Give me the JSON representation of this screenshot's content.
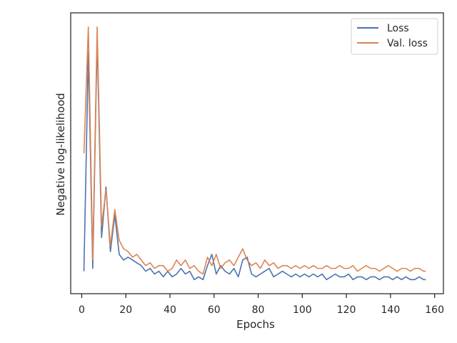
{
  "chart_data": {
    "type": "line",
    "xlabel": "Epochs",
    "ylabel": "Negative log-likelihood",
    "xlim": [
      -5,
      164
    ],
    "ylim": [
      0,
      1
    ],
    "xticks": [
      0,
      20,
      40,
      60,
      80,
      100,
      120,
      140,
      160
    ],
    "yticks_labeled": false,
    "legend_position": "top-right",
    "series": [
      {
        "name": "Loss",
        "color": "#4c72b0",
        "x": [
          1,
          3,
          5,
          7,
          9,
          11,
          13,
          15,
          17,
          19,
          21,
          23,
          25,
          27,
          29,
          31,
          33,
          35,
          37,
          39,
          41,
          43,
          45,
          47,
          49,
          51,
          53,
          55,
          57,
          59,
          61,
          63,
          65,
          67,
          69,
          71,
          73,
          75,
          77,
          79,
          81,
          83,
          85,
          87,
          89,
          91,
          93,
          95,
          97,
          99,
          101,
          103,
          105,
          107,
          109,
          111,
          113,
          115,
          117,
          119,
          121,
          123,
          125,
          127,
          129,
          131,
          133,
          135,
          137,
          139,
          141,
          143,
          145,
          147,
          149,
          151,
          153,
          155,
          156
        ],
        "y": [
          0.08,
          0.86,
          0.09,
          0.91,
          0.2,
          0.38,
          0.15,
          0.28,
          0.14,
          0.12,
          0.13,
          0.12,
          0.11,
          0.1,
          0.08,
          0.09,
          0.07,
          0.08,
          0.06,
          0.08,
          0.06,
          0.07,
          0.09,
          0.07,
          0.08,
          0.05,
          0.06,
          0.05,
          0.1,
          0.14,
          0.07,
          0.1,
          0.08,
          0.07,
          0.09,
          0.06,
          0.12,
          0.13,
          0.07,
          0.06,
          0.07,
          0.08,
          0.09,
          0.06,
          0.07,
          0.08,
          0.07,
          0.06,
          0.07,
          0.06,
          0.07,
          0.06,
          0.07,
          0.06,
          0.07,
          0.05,
          0.06,
          0.07,
          0.06,
          0.06,
          0.07,
          0.05,
          0.06,
          0.06,
          0.05,
          0.06,
          0.06,
          0.05,
          0.06,
          0.06,
          0.05,
          0.06,
          0.05,
          0.06,
          0.05,
          0.05,
          0.06,
          0.05,
          0.05
        ]
      },
      {
        "name": "Val. loss",
        "color": "#dd8452",
        "x": [
          1,
          3,
          5,
          7,
          9,
          11,
          13,
          15,
          17,
          19,
          21,
          23,
          25,
          27,
          29,
          31,
          33,
          35,
          37,
          39,
          41,
          43,
          45,
          47,
          49,
          51,
          53,
          55,
          57,
          59,
          61,
          63,
          65,
          67,
          69,
          71,
          73,
          75,
          77,
          79,
          81,
          83,
          85,
          87,
          89,
          91,
          93,
          95,
          97,
          99,
          101,
          103,
          105,
          107,
          109,
          111,
          113,
          115,
          117,
          119,
          121,
          123,
          125,
          127,
          129,
          131,
          133,
          135,
          137,
          139,
          141,
          143,
          145,
          147,
          149,
          151,
          153,
          155,
          156
        ],
        "y": [
          0.5,
          0.95,
          0.12,
          0.95,
          0.24,
          0.37,
          0.17,
          0.3,
          0.19,
          0.16,
          0.15,
          0.13,
          0.14,
          0.12,
          0.1,
          0.11,
          0.09,
          0.1,
          0.1,
          0.08,
          0.09,
          0.12,
          0.1,
          0.12,
          0.09,
          0.1,
          0.08,
          0.07,
          0.13,
          0.1,
          0.14,
          0.09,
          0.11,
          0.12,
          0.1,
          0.13,
          0.16,
          0.12,
          0.1,
          0.11,
          0.09,
          0.12,
          0.1,
          0.11,
          0.09,
          0.1,
          0.1,
          0.09,
          0.1,
          0.09,
          0.1,
          0.09,
          0.1,
          0.09,
          0.09,
          0.1,
          0.09,
          0.09,
          0.1,
          0.09,
          0.09,
          0.1,
          0.08,
          0.09,
          0.1,
          0.09,
          0.09,
          0.08,
          0.09,
          0.1,
          0.09,
          0.08,
          0.09,
          0.09,
          0.08,
          0.09,
          0.09,
          0.08,
          0.08
        ]
      }
    ]
  }
}
